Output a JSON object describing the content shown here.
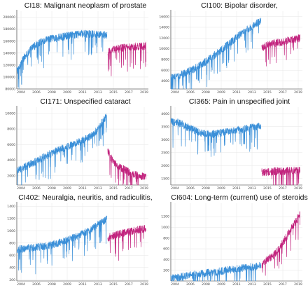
{
  "chart_data": [
    {
      "type": "line",
      "title": "CI18: Malignant neoplasm of prostate",
      "x_ticks": [
        "2004",
        "2006",
        "2008",
        "2009",
        "2011",
        "2013",
        "2015",
        "2017",
        "2019"
      ],
      "y_ticks": [
        80000,
        100000,
        120000,
        140000,
        160000,
        180000,
        200000
      ],
      "ylim": [
        80000,
        210000
      ],
      "xlim": [
        2004,
        2020.5
      ],
      "grid": true,
      "series": [
        {
          "segment": "observed",
          "color": "#3a8fd8",
          "x": [
            2004,
            2005,
            2006,
            2007,
            2008,
            2009,
            2010,
            2011,
            2012,
            2013,
            2014,
            2015.3
          ],
          "y": [
            110000,
            135000,
            150000,
            158000,
            163000,
            165000,
            168000,
            170000,
            172000,
            172000,
            171000,
            170000
          ]
        },
        {
          "segment": "forecast",
          "color": "#c2247e",
          "x": [
            2015.4,
            2016,
            2017,
            2018,
            2019,
            2020.2
          ],
          "y": [
            142000,
            146000,
            148000,
            150000,
            151000,
            152000
          ]
        }
      ]
    },
    {
      "type": "line",
      "title": "CI100: Bipolar disorder,",
      "x_ticks": [
        "2004",
        "2006",
        "2008",
        "2009",
        "2011",
        "2013",
        "2015",
        "2017",
        "2019"
      ],
      "y_ticks": [
        4000,
        6000,
        8000,
        10000,
        12000,
        14000,
        16000
      ],
      "ylim": [
        2500,
        17000
      ],
      "xlim": [
        2004,
        2020.5
      ],
      "grid": true,
      "series": [
        {
          "segment": "observed",
          "color": "#3a8fd8",
          "x": [
            2004,
            2005,
            2006,
            2007,
            2008,
            2009,
            2010,
            2011,
            2012,
            2013,
            2014,
            2015.3
          ],
          "y": [
            4500,
            5000,
            5600,
            6300,
            7200,
            8300,
            9400,
            10600,
            11800,
            13000,
            14000,
            15200
          ]
        },
        {
          "segment": "forecast",
          "color": "#c2247e",
          "x": [
            2015.4,
            2016,
            2017,
            2018,
            2019,
            2020.2
          ],
          "y": [
            10000,
            10600,
            11000,
            11300,
            11600,
            12000
          ]
        }
      ]
    },
    {
      "type": "line",
      "title": "CI171: Unspecified cataract",
      "x_ticks": [
        "2004",
        "2006",
        "2008",
        "2009",
        "2011",
        "2013",
        "2015",
        "2017",
        "2019"
      ],
      "y_ticks": [
        2000,
        4000,
        6000,
        8000,
        10000
      ],
      "ylim": [
        800,
        10800
      ],
      "xlim": [
        2004,
        2020.5
      ],
      "grid": true,
      "series": [
        {
          "segment": "observed",
          "color": "#3a8fd8",
          "x": [
            2004,
            2005,
            2006,
            2007,
            2008,
            2009,
            2010,
            2011,
            2012,
            2013,
            2014,
            2015.3
          ],
          "y": [
            2600,
            3100,
            3600,
            4200,
            4700,
            5200,
            5600,
            6000,
            6400,
            6900,
            7800,
            9800
          ]
        },
        {
          "segment": "forecast",
          "color": "#c2247e",
          "x": [
            2015.4,
            2016,
            2017,
            2018,
            2019,
            2020.2
          ],
          "y": [
            5200,
            3900,
            3000,
            2500,
            2100,
            1800
          ]
        }
      ]
    },
    {
      "type": "line",
      "title": "CI365: Pain in unspecified joint",
      "x_ticks": [
        "2004",
        "2006",
        "2008",
        "2009",
        "2011",
        "2013",
        "2015",
        "2017",
        "2019"
      ],
      "y_ticks": [
        1500,
        2000,
        2500,
        3000,
        3500,
        4000
      ],
      "ylim": [
        1250,
        4250
      ],
      "xlim": [
        2004,
        2020.5
      ],
      "grid": true,
      "series": [
        {
          "segment": "observed",
          "color": "#3a8fd8",
          "x": [
            2004,
            2005,
            2006,
            2007,
            2008,
            2009,
            2010,
            2011,
            2012,
            2013,
            2014,
            2015.3
          ],
          "y": [
            3700,
            3650,
            3500,
            3350,
            3250,
            3200,
            3250,
            3300,
            3350,
            3400,
            3450,
            3550
          ]
        },
        {
          "segment": "forecast",
          "color": "#c2247e",
          "x": [
            2015.4,
            2016,
            2017,
            2018,
            2019,
            2020.2
          ],
          "y": [
            1750,
            1750,
            1780,
            1780,
            1800,
            1820
          ]
        }
      ]
    },
    {
      "type": "line",
      "title": "CI402: Neuralgia, neuritis, and radiculitis,",
      "x_ticks": [
        "2004",
        "2006",
        "2008",
        "2009",
        "2011",
        "2013",
        "2015",
        "2017",
        "2019"
      ],
      "y_ticks": [
        200,
        400,
        600,
        800,
        1000,
        1200,
        1400
      ],
      "ylim": [
        180,
        1450
      ],
      "xlim": [
        2004,
        2020.5
      ],
      "grid": true,
      "series": [
        {
          "segment": "observed",
          "color": "#3a8fd8",
          "x": [
            2004,
            2005,
            2006,
            2007,
            2008,
            2009,
            2010,
            2011,
            2012,
            2013,
            2014,
            2015.3
          ],
          "y": [
            700,
            710,
            720,
            740,
            760,
            790,
            830,
            880,
            940,
            1000,
            1080,
            1200
          ]
        },
        {
          "segment": "forecast",
          "color": "#c2247e",
          "x": [
            2015.4,
            2016,
            2017,
            2018,
            2019,
            2020.2
          ],
          "y": [
            880,
            920,
            950,
            980,
            1010,
            1040
          ]
        }
      ]
    },
    {
      "type": "line",
      "title": "CI604: Long-term (current) use of steroids",
      "x_ticks": [
        "2004",
        "2006",
        "2008",
        "2009",
        "2011",
        "2013",
        "2015",
        "2017",
        "2019"
      ],
      "y_ticks": [
        200,
        400,
        600,
        800,
        1000,
        1200
      ],
      "ylim": [
        0,
        1450
      ],
      "xlim": [
        2004,
        2020.5
      ],
      "grid": true,
      "series": [
        {
          "segment": "observed",
          "color": "#3a8fd8",
          "x": [
            2004,
            2005,
            2006,
            2007,
            2008,
            2009,
            2010,
            2011,
            2012,
            2013,
            2014,
            2015.3
          ],
          "y": [
            40,
            70,
            100,
            120,
            140,
            160,
            180,
            200,
            220,
            240,
            260,
            290
          ]
        },
        {
          "segment": "forecast",
          "color": "#c2247e",
          "x": [
            2015.4,
            2016,
            2017,
            2018,
            2019,
            2020.2
          ],
          "y": [
            300,
            380,
            500,
            700,
            950,
            1250
          ]
        }
      ]
    }
  ]
}
